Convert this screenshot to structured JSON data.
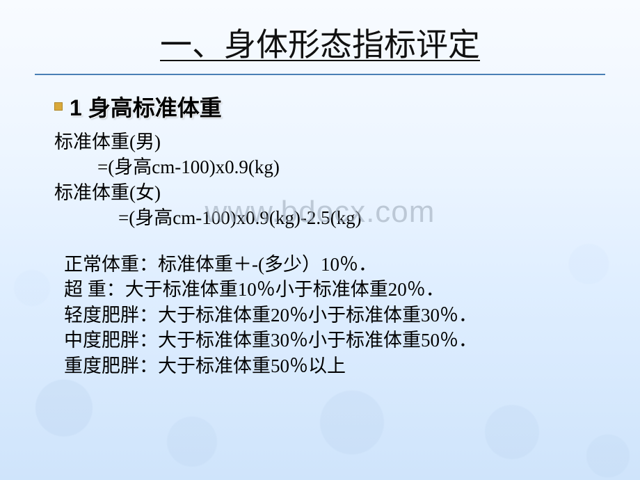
{
  "colors": {
    "background_top": "#f8fbff",
    "background_bottom": "#cfe4fb",
    "title_text": "#111111",
    "rule_color": "#4a7fb5",
    "bullet_fill": "#d9a93a",
    "bullet_border": "#b0872a",
    "body_text": "#000000",
    "watermark_text": "#9aa7b5"
  },
  "typography": {
    "title_fontsize_pt": 34,
    "heading_fontsize_pt": 24,
    "body_fontsize_pt": 20,
    "title_font": "KaiTi",
    "heading_font": "SimHei",
    "body_font": "SimSun"
  },
  "title": "一、身体形态指标评定",
  "heading": "1 身高标准体重",
  "formulas": {
    "male_label": "标准体重(男)",
    "male_formula": "=(身高cm-100)x0.9(kg)",
    "female_label": "标准体重(女)",
    "female_formula": "=(身高cm-100)x0.9(kg)-2.5(kg)"
  },
  "categories": {
    "normal": "正常体重：标准体重＋-(多少）10％．",
    "overweight": "超 重：大于标准体重10％小于标准体重20％．",
    "mild": "轻度肥胖：大于标准体重20％小于标准体重30％．",
    "moderate": "中度肥胖：大于标准体重30％小于标准体重50％．",
    "severe": "重度肥胖：大于标准体重50％以上"
  },
  "watermark": "www.bdocx.com"
}
